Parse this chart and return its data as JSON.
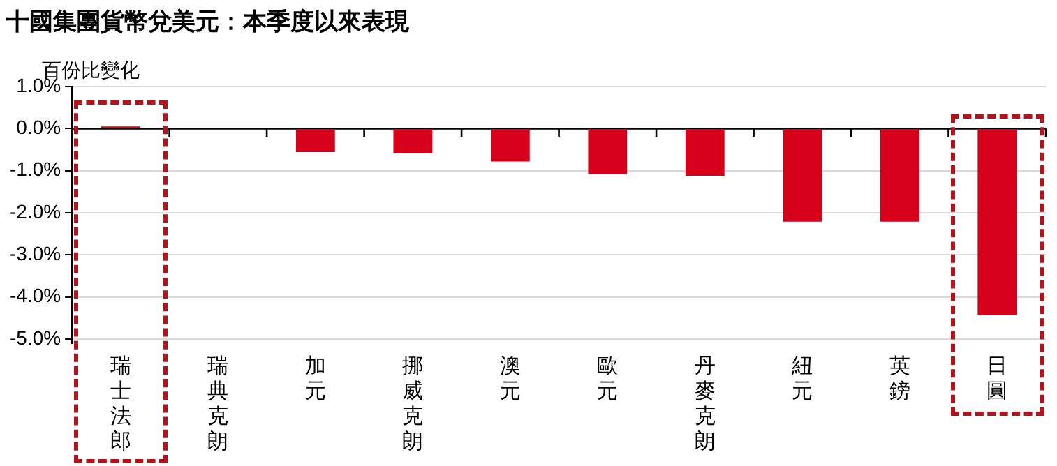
{
  "chart_data": {
    "type": "bar",
    "title": "十國集團貨幣兌美元：本季度以來表現",
    "ylabel": "百份比變化",
    "categories": [
      "瑞士法郎",
      "瑞典克朗",
      "加元",
      "挪威克朗",
      "澳元",
      "歐元",
      "丹麥克朗",
      "紐元",
      "英鎊",
      "日圓"
    ],
    "values": [
      0.05,
      -0.02,
      -0.56,
      -0.59,
      -0.78,
      -1.08,
      -1.12,
      -2.21,
      -2.21,
      -4.43
    ],
    "color": "#d7001a",
    "ylim": [
      -5.1,
      1.0
    ],
    "yticks": [
      {
        "value": 1,
        "label": "1.0%"
      },
      {
        "value": 0,
        "label": "0.0%"
      },
      {
        "value": -1,
        "label": "-1.0%"
      },
      {
        "value": -2,
        "label": "-2.0%"
      },
      {
        "value": -3,
        "label": "-3.0%"
      },
      {
        "value": -4,
        "label": "-4.0%"
      },
      {
        "value": -5,
        "label": "-5.0%"
      }
    ],
    "grid": "y",
    "legend": false
  }
}
